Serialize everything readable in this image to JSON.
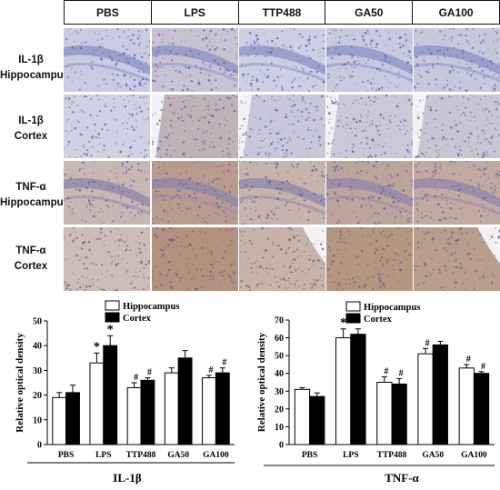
{
  "header": {
    "columns": [
      "PBS",
      "LPS",
      "TTP488",
      "GA50",
      "GA100"
    ]
  },
  "rows": [
    {
      "line1": "IL-1β",
      "line2": "Hippocampus"
    },
    {
      "line1": "IL-1β",
      "line2": "Cortex"
    },
    {
      "line1": "TNF-α",
      "line2": "Hippocampus"
    },
    {
      "line1": "TNF-α",
      "line2": "Cortex"
    }
  ],
  "colors": {
    "hippocampus": "#ffffff",
    "cortex": "#000000",
    "ihc_blue": "#6f78b4",
    "ihc_brown": "#a47a63"
  },
  "chart_data": [
    {
      "type": "bar",
      "xlabel": "IL-1β",
      "ylabel": "Relative optical density",
      "categories": [
        "PBS",
        "LPS",
        "TTP488",
        "GA50",
        "GA100"
      ],
      "ylim": [
        0,
        50
      ],
      "yticks": [
        0,
        10,
        20,
        30,
        40,
        50
      ],
      "legend": "top-left",
      "series": [
        {
          "name": "Hippocampus",
          "values": [
            19,
            33,
            23,
            29,
            27
          ],
          "errors": [
            2,
            4,
            2,
            2,
            1
          ],
          "marks": [
            "",
            "*",
            "#",
            "",
            "#"
          ]
        },
        {
          "name": "Cortex",
          "values": [
            21,
            40,
            26,
            35,
            29
          ],
          "errors": [
            3,
            4,
            1,
            3,
            2
          ],
          "marks": [
            "",
            "*",
            "#",
            "",
            "#"
          ]
        }
      ]
    },
    {
      "type": "bar",
      "xlabel": "TNF-α",
      "ylabel": "Relative optical density",
      "categories": [
        "PBS",
        "LPS",
        "TTP488",
        "GA50",
        "GA100"
      ],
      "ylim": [
        0,
        70
      ],
      "yticks": [
        0,
        10,
        20,
        30,
        40,
        50,
        60,
        70
      ],
      "legend": "top-center",
      "series": [
        {
          "name": "Hippocampus",
          "values": [
            31,
            60,
            35,
            51,
            43
          ],
          "errors": [
            1,
            5,
            3,
            3,
            2
          ],
          "marks": [
            "",
            "*",
            "#",
            "#",
            "#"
          ]
        },
        {
          "name": "Cortex",
          "values": [
            27,
            62,
            34,
            56,
            40
          ],
          "errors": [
            2,
            3,
            3,
            2,
            1
          ],
          "marks": [
            "",
            "*",
            "#",
            "",
            "#"
          ]
        }
      ]
    }
  ]
}
